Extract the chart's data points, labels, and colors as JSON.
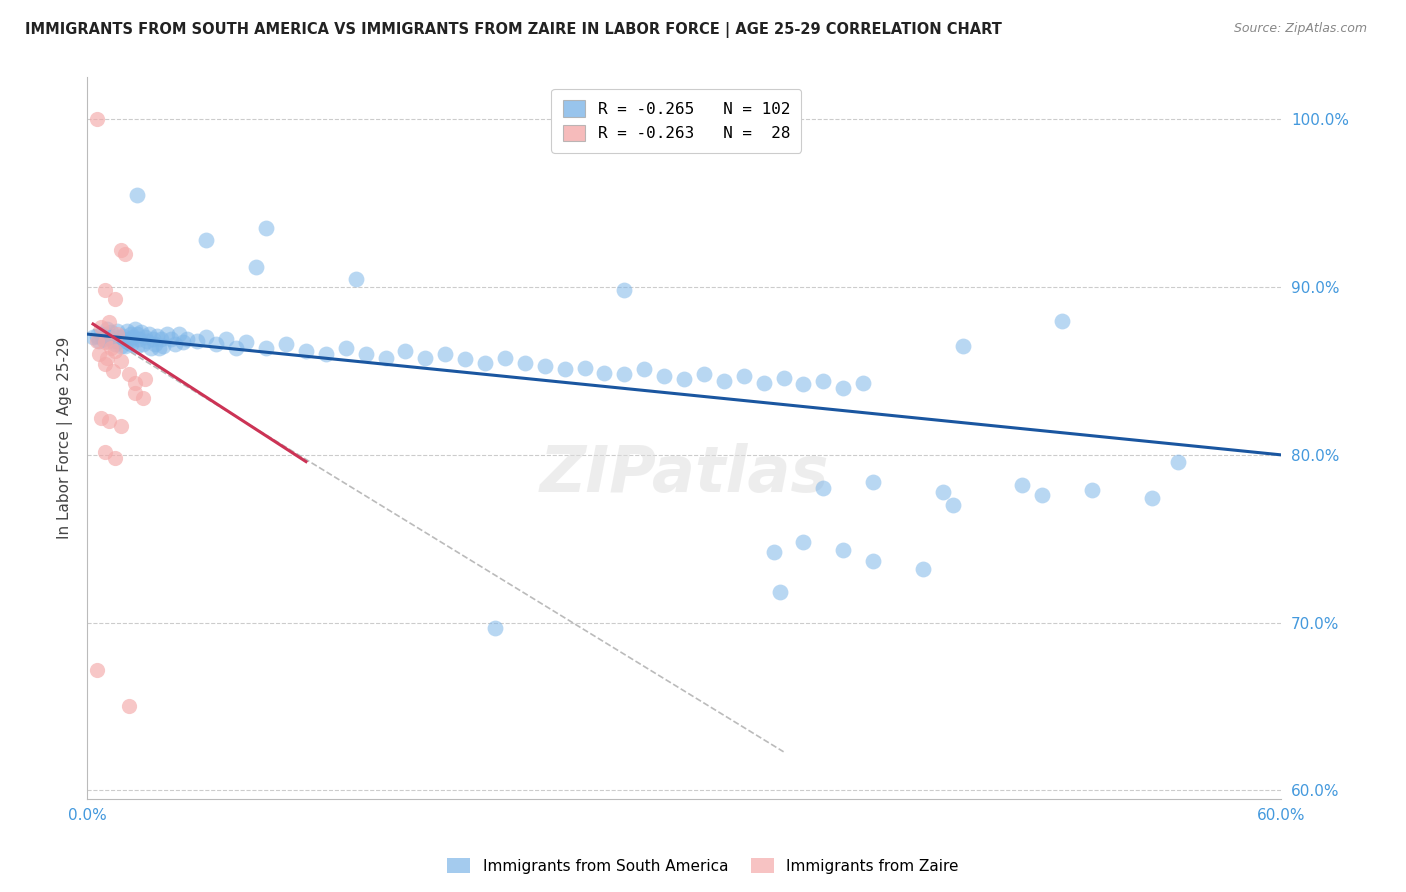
{
  "title": "IMMIGRANTS FROM SOUTH AMERICA VS IMMIGRANTS FROM ZAIRE IN LABOR FORCE | AGE 25-29 CORRELATION CHART",
  "source": "Source: ZipAtlas.com",
  "ylabel": "In Labor Force | Age 25-29",
  "xlim": [
    0.0,
    0.6
  ],
  "ylim": [
    0.595,
    1.025
  ],
  "yticks_right": [
    1.0,
    0.9,
    0.8,
    0.7,
    0.6
  ],
  "yticklabels_right": [
    "100.0%",
    "90.0%",
    "80.0%",
    "70.0%",
    "60.0%"
  ],
  "blue_color": "#7EB6E8",
  "pink_color": "#F4AAAA",
  "line_blue": "#1A56A0",
  "line_pink": "#CC3355",
  "line_gray_dashed": "#BBBBBB",
  "background": "#FFFFFF",
  "grid_color": "#CCCCCC",
  "tick_color": "#4499DD",
  "blue_scatter": [
    [
      0.003,
      0.87
    ],
    [
      0.005,
      0.871
    ],
    [
      0.006,
      0.868
    ],
    [
      0.007,
      0.872
    ],
    [
      0.008,
      0.869
    ],
    [
      0.009,
      0.872
    ],
    [
      0.01,
      0.875
    ],
    [
      0.01,
      0.868
    ],
    [
      0.011,
      0.87
    ],
    [
      0.012,
      0.873
    ],
    [
      0.013,
      0.868
    ],
    [
      0.014,
      0.866
    ],
    [
      0.015,
      0.874
    ],
    [
      0.015,
      0.868
    ],
    [
      0.016,
      0.87
    ],
    [
      0.017,
      0.865
    ],
    [
      0.018,
      0.871
    ],
    [
      0.019,
      0.865
    ],
    [
      0.02,
      0.874
    ],
    [
      0.02,
      0.869
    ],
    [
      0.021,
      0.867
    ],
    [
      0.022,
      0.872
    ],
    [
      0.022,
      0.866
    ],
    [
      0.023,
      0.87
    ],
    [
      0.024,
      0.875
    ],
    [
      0.025,
      0.872
    ],
    [
      0.025,
      0.865
    ],
    [
      0.026,
      0.869
    ],
    [
      0.027,
      0.873
    ],
    [
      0.028,
      0.866
    ],
    [
      0.029,
      0.87
    ],
    [
      0.03,
      0.868
    ],
    [
      0.031,
      0.872
    ],
    [
      0.032,
      0.864
    ],
    [
      0.033,
      0.869
    ],
    [
      0.034,
      0.866
    ],
    [
      0.035,
      0.871
    ],
    [
      0.036,
      0.864
    ],
    [
      0.037,
      0.869
    ],
    [
      0.038,
      0.865
    ],
    [
      0.04,
      0.872
    ],
    [
      0.042,
      0.869
    ],
    [
      0.044,
      0.866
    ],
    [
      0.046,
      0.872
    ],
    [
      0.048,
      0.867
    ],
    [
      0.05,
      0.869
    ],
    [
      0.055,
      0.868
    ],
    [
      0.06,
      0.87
    ],
    [
      0.065,
      0.866
    ],
    [
      0.07,
      0.869
    ],
    [
      0.075,
      0.864
    ],
    [
      0.08,
      0.867
    ],
    [
      0.09,
      0.864
    ],
    [
      0.1,
      0.866
    ],
    [
      0.11,
      0.862
    ],
    [
      0.12,
      0.86
    ],
    [
      0.13,
      0.864
    ],
    [
      0.14,
      0.86
    ],
    [
      0.15,
      0.858
    ],
    [
      0.16,
      0.862
    ],
    [
      0.17,
      0.858
    ],
    [
      0.18,
      0.86
    ],
    [
      0.19,
      0.857
    ],
    [
      0.2,
      0.855
    ],
    [
      0.21,
      0.858
    ],
    [
      0.22,
      0.855
    ],
    [
      0.23,
      0.853
    ],
    [
      0.24,
      0.851
    ],
    [
      0.25,
      0.852
    ],
    [
      0.26,
      0.849
    ],
    [
      0.27,
      0.848
    ],
    [
      0.28,
      0.851
    ],
    [
      0.29,
      0.847
    ],
    [
      0.3,
      0.845
    ],
    [
      0.31,
      0.848
    ],
    [
      0.32,
      0.844
    ],
    [
      0.33,
      0.847
    ],
    [
      0.34,
      0.843
    ],
    [
      0.35,
      0.846
    ],
    [
      0.36,
      0.842
    ],
    [
      0.37,
      0.844
    ],
    [
      0.38,
      0.84
    ],
    [
      0.39,
      0.843
    ],
    [
      0.025,
      0.955
    ],
    [
      0.06,
      0.928
    ],
    [
      0.085,
      0.912
    ],
    [
      0.09,
      0.935
    ],
    [
      0.135,
      0.905
    ],
    [
      0.27,
      0.898
    ],
    [
      0.44,
      0.865
    ],
    [
      0.49,
      0.88
    ],
    [
      0.37,
      0.78
    ],
    [
      0.395,
      0.784
    ],
    [
      0.43,
      0.778
    ],
    [
      0.47,
      0.782
    ],
    [
      0.435,
      0.77
    ],
    [
      0.48,
      0.776
    ],
    [
      0.505,
      0.779
    ],
    [
      0.535,
      0.774
    ],
    [
      0.548,
      0.796
    ],
    [
      0.205,
      0.697
    ],
    [
      0.345,
      0.742
    ],
    [
      0.36,
      0.748
    ],
    [
      0.38,
      0.743
    ],
    [
      0.395,
      0.737
    ],
    [
      0.42,
      0.732
    ],
    [
      0.348,
      0.718
    ]
  ],
  "pink_scatter": [
    [
      0.005,
      1.0
    ],
    [
      0.017,
      0.922
    ],
    [
      0.019,
      0.92
    ],
    [
      0.009,
      0.898
    ],
    [
      0.014,
      0.893
    ],
    [
      0.007,
      0.876
    ],
    [
      0.011,
      0.879
    ],
    [
      0.015,
      0.872
    ],
    [
      0.005,
      0.868
    ],
    [
      0.009,
      0.867
    ],
    [
      0.012,
      0.864
    ],
    [
      0.006,
      0.86
    ],
    [
      0.01,
      0.858
    ],
    [
      0.014,
      0.862
    ],
    [
      0.009,
      0.854
    ],
    [
      0.013,
      0.85
    ],
    [
      0.017,
      0.856
    ],
    [
      0.021,
      0.848
    ],
    [
      0.024,
      0.843
    ],
    [
      0.029,
      0.845
    ],
    [
      0.024,
      0.837
    ],
    [
      0.028,
      0.834
    ],
    [
      0.007,
      0.822
    ],
    [
      0.011,
      0.82
    ],
    [
      0.017,
      0.817
    ],
    [
      0.009,
      0.802
    ],
    [
      0.014,
      0.798
    ],
    [
      0.005,
      0.672
    ],
    [
      0.021,
      0.65
    ]
  ],
  "blue_line_x": [
    0.0,
    0.6
  ],
  "blue_line_y": [
    0.872,
    0.8
  ],
  "pink_line_x": [
    0.003,
    0.11
  ],
  "pink_line_y": [
    0.878,
    0.796
  ],
  "gray_dashed_line_x": [
    0.003,
    0.35
  ],
  "gray_dashed_line_y": [
    0.875,
    0.623
  ]
}
